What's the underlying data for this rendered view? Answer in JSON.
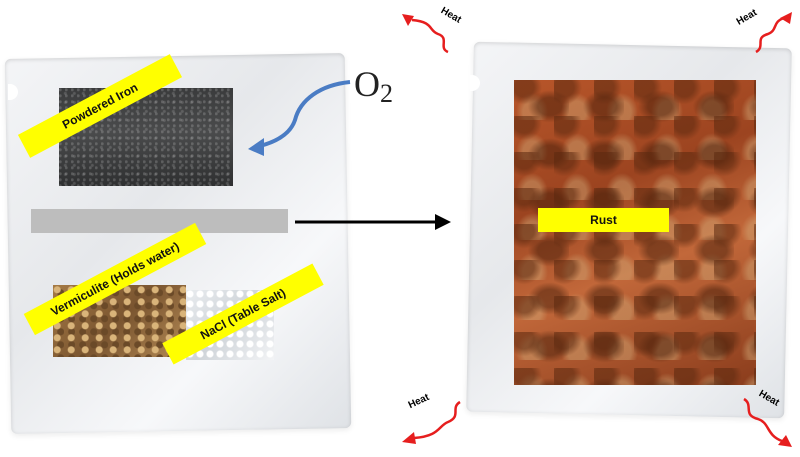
{
  "labels": {
    "powdered_iron": "Powdered Iron",
    "vermiculite": "Vermiculite (Holds water)",
    "nacl": "NaCl (Table Salt)",
    "rust": "Rust"
  },
  "oxygen": {
    "symbol": "O",
    "subscript": "2"
  },
  "heat": {
    "top_left": "Heat",
    "top_right": "Heat",
    "bottom_left": "Heat",
    "bottom_right": "Heat"
  },
  "colors": {
    "label_bg": "#ffff00",
    "heat_arrow": "#e61e1e",
    "oxygen_arrow": "#4a7cc4",
    "reaction_arrow": "#000000"
  },
  "icons": [
    "hand-warmer-packet-icon",
    "heat-wavy-arrow-icon",
    "curved-arrow-icon",
    "reaction-arrow-icon"
  ]
}
